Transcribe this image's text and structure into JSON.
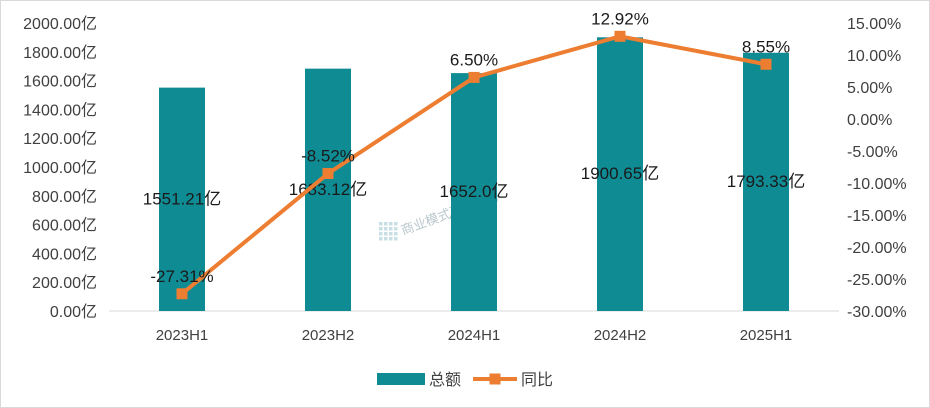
{
  "chart_data": {
    "type": "bar",
    "categories": [
      "2023H1",
      "2023H2",
      "2024H1",
      "2024H2",
      "2025H1"
    ],
    "series": [
      {
        "name": "总额",
        "type": "bar",
        "axis": "left",
        "color": "#0f8b94",
        "values": [
          1551.21,
          1683.12,
          1652.0,
          1900.65,
          1793.33
        ],
        "labels": [
          "1551.21亿",
          "1683.12亿",
          "1652.0亿",
          "1900.65亿",
          "1793.33亿"
        ]
      },
      {
        "name": "同比",
        "type": "line",
        "axis": "right",
        "color": "#ed7d31",
        "values": [
          -27.31,
          -8.52,
          6.5,
          12.92,
          8.55
        ],
        "labels": [
          "-27.31%",
          "-8.52%",
          "6.50%",
          "12.92%",
          "8.55%"
        ]
      }
    ],
    "y_left": {
      "min": 0,
      "max": 2000,
      "ticks": [
        "0.00亿",
        "200.00亿",
        "400.00亿",
        "600.00亿",
        "800.00亿",
        "1000.00亿",
        "1200.00亿",
        "1400.00亿",
        "1600.00亿",
        "1800.00亿",
        "2000.00亿"
      ]
    },
    "y_right": {
      "min": -30,
      "max": 15,
      "ticks": [
        "-30.00%",
        "-25.00%",
        "-20.00%",
        "-15.00%",
        "-10.00%",
        "-5.00%",
        "0.00%",
        "5.00%",
        "10.00%",
        "15.00%"
      ]
    },
    "grid": false,
    "legend_position": "bottom"
  },
  "watermark": "商业模式研究中心"
}
